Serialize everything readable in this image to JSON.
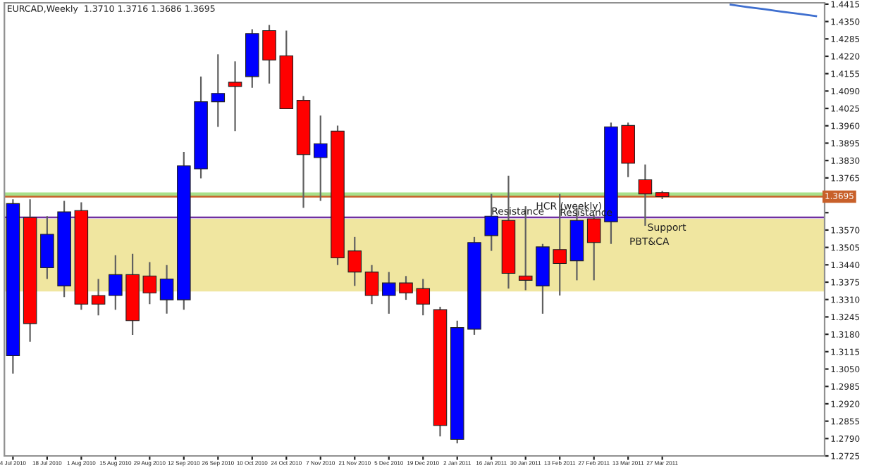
{
  "chart_data": {
    "type": "candlestick",
    "title": "EURCAD,Weekly  1.3710 1.3716 1.3686 1.3695",
    "categories": [
      "4 Jul 2010",
      null,
      "18 Jul 2010",
      null,
      "1 Aug 2010",
      null,
      "15 Aug 2010",
      null,
      "29 Aug 2010",
      null,
      "12 Sep 2010",
      null,
      "26 Sep 2010",
      null,
      "10 Oct 2010",
      null,
      "24 Oct 2010",
      null,
      "7 Nov 2010",
      null,
      "21 Nov 2010",
      null,
      "5 Dec 2010",
      null,
      "19 Dec 2010",
      null,
      "2 Jan 2011",
      null,
      "16 Jan 2011",
      null,
      "30 Jan 2011",
      null,
      "13 Feb 2011",
      null,
      "27 Feb 2011",
      null,
      "13 Mar 2011",
      null,
      "27 Mar 2011",
      null,
      null,
      null,
      null,
      null,
      null,
      null,
      null,
      null
    ],
    "ohlc": [
      [
        1.31,
        1.3685,
        1.3033,
        1.3669
      ],
      [
        1.3617,
        1.3685,
        1.3152,
        1.322
      ],
      [
        1.3429,
        1.3622,
        1.3387,
        1.3554
      ],
      [
        1.3361,
        1.3679,
        1.3319,
        1.3638
      ],
      [
        1.3643,
        1.3674,
        1.3272,
        1.3293
      ],
      [
        1.3325,
        1.3387,
        1.3251,
        1.3293
      ],
      [
        1.3325,
        1.3476,
        1.3272,
        1.3403
      ],
      [
        1.3403,
        1.3481,
        1.3178,
        1.3231
      ],
      [
        1.3398,
        1.345,
        1.3293,
        1.3335
      ],
      [
        1.3309,
        1.3439,
        1.3257,
        1.3387
      ],
      [
        1.3309,
        1.3862,
        1.3272,
        1.381
      ],
      [
        1.3799,
        1.4144,
        1.3763,
        1.405
      ],
      [
        1.405,
        1.4227,
        1.3956,
        1.4081
      ],
      [
        1.4123,
        1.4201,
        1.394,
        1.4107
      ],
      [
        1.4144,
        1.4321,
        1.4102,
        1.4305
      ],
      [
        1.4316,
        1.4337,
        1.4118,
        1.4206
      ],
      [
        1.4222,
        1.4316,
        1.4024,
        1.4024
      ],
      [
        1.4055,
        1.4071,
        1.3653,
        1.3852
      ],
      [
        1.3841,
        1.3998,
        1.3679,
        1.3893
      ],
      [
        1.394,
        1.3961,
        1.3439,
        1.3466
      ],
      [
        1.3492,
        1.3544,
        1.3361,
        1.3413
      ],
      [
        1.3413,
        1.3439,
        1.3293,
        1.3325
      ],
      [
        1.3325,
        1.3413,
        1.3257,
        1.3372
      ],
      [
        1.3372,
        1.3398,
        1.3309,
        1.3335
      ],
      [
        1.3351,
        1.3387,
        1.3251,
        1.3293
      ],
      [
        1.3272,
        1.3283,
        1.2798,
        1.2839
      ],
      [
        1.2787,
        1.3231,
        1.2772,
        1.3205
      ],
      [
        1.3199,
        1.3544,
        1.3178,
        1.3523
      ],
      [
        1.3549,
        1.3705,
        1.3492,
        1.3622
      ],
      [
        1.3606,
        1.3773,
        1.3351,
        1.3408
      ],
      [
        1.3398,
        1.3659,
        1.3345,
        1.3382
      ],
      [
        1.3361,
        1.3518,
        1.3257,
        1.3507
      ],
      [
        1.3497,
        1.3705,
        1.3325,
        1.3445
      ],
      [
        1.3455,
        1.3653,
        1.3382,
        1.3606
      ],
      [
        1.3612,
        1.3627,
        1.3382,
        1.3523
      ],
      [
        1.3601,
        1.3972,
        1.3518,
        1.3956
      ],
      [
        1.3961,
        1.3972,
        1.3768,
        1.382
      ],
      [
        1.3758,
        1.3815,
        1.3586,
        1.3705
      ],
      [
        1.371,
        1.3716,
        1.3686,
        1.3695
      ],
      null,
      null,
      null,
      null,
      null,
      null,
      null,
      null,
      null
    ],
    "colors": [
      "#0000ff",
      "#ff0000",
      "#0000ff",
      "#0000ff",
      "#ff0000",
      "#ff0000",
      "#0000ff",
      "#ff0000",
      "#ff0000",
      "#0000ff",
      "#0000ff",
      "#0000ff",
      "#0000ff",
      "#ff0000",
      "#0000ff",
      "#ff0000",
      "#ff0000",
      "#ff0000",
      "#0000ff",
      "#ff0000",
      "#ff0000",
      "#ff0000",
      "#0000ff",
      "#ff0000",
      "#ff0000",
      "#ff0000",
      "#0000ff",
      "#0000ff",
      "#0000ff",
      "#ff0000",
      "#ff0000",
      "#0000ff",
      "#ff0000",
      "#0000ff",
      "#ff0000",
      "#0000ff",
      "#ff0000",
      "#ff0000",
      "#ff0000",
      null,
      null,
      null,
      null,
      null,
      null,
      null,
      null,
      null
    ],
    "series": [
      {
        "type": "line",
        "color": "#3f6fcf",
        "values": [
          null,
          null,
          null,
          null,
          null,
          null,
          null,
          null,
          null,
          null,
          null,
          null,
          null,
          null,
          null,
          null,
          null,
          null,
          null,
          null,
          null,
          null,
          null,
          null,
          null,
          null,
          null,
          null,
          null,
          null,
          null,
          null,
          null,
          null,
          null,
          null,
          null,
          null,
          null,
          null,
          null,
          null,
          1.4413,
          1.4404,
          1.4396,
          1.4387,
          1.4379,
          1.437
        ]
      }
    ],
    "ylim": [
      1.2725,
      1.442
    ],
    "yticks": [
      {
        "value": 1.2725,
        "label": "1.2725"
      },
      {
        "value": 1.279,
        "label": "1.2790"
      },
      {
        "value": 1.2855,
        "label": "1.2855"
      },
      {
        "value": 1.292,
        "label": "1.2920"
      },
      {
        "value": 1.2985,
        "label": "1.2985"
      },
      {
        "value": 1.305,
        "label": "1.3050"
      },
      {
        "value": 1.3115,
        "label": "1.3115"
      },
      {
        "value": 1.318,
        "label": "1.3180"
      },
      {
        "value": 1.3245,
        "label": "1.3245"
      },
      {
        "value": 1.331,
        "label": "1.3310"
      },
      {
        "value": 1.3375,
        "label": "1.3375"
      },
      {
        "value": 1.344,
        "label": "1.3440"
      },
      {
        "value": 1.3505,
        "label": "1.3505"
      },
      {
        "value": 1.357,
        "label": "1.3570"
      },
      {
        "value": 1.3635,
        "label": null
      },
      {
        "value": 1.37,
        "label": null
      },
      {
        "value": 1.3765,
        "label": "1.3765"
      },
      {
        "value": 1.383,
        "label": "1.3830"
      },
      {
        "value": 1.3895,
        "label": "1.3895"
      },
      {
        "value": 1.396,
        "label": "1.3960"
      },
      {
        "value": 1.4025,
        "label": "1.4025"
      },
      {
        "value": 1.409,
        "label": "1.4090"
      },
      {
        "value": 1.4155,
        "label": "1.4155"
      },
      {
        "value": 1.422,
        "label": "1.4220"
      },
      {
        "value": 1.4285,
        "label": "1.4285"
      },
      {
        "value": 1.435,
        "label": "1.4350"
      },
      {
        "value": 1.4415,
        "label": "1.4415"
      }
    ],
    "bands": [
      {
        "axis": "y",
        "from": 1.334,
        "to": 1.3612,
        "color": "#f0e6a0"
      },
      {
        "axis": "y",
        "from": 1.3695,
        "to": 1.3711,
        "color": "#a8e08a"
      }
    ],
    "ref_lines": [
      {
        "axis": "y",
        "value": 1.3695,
        "label": "1.3695",
        "color": "#c8602a"
      },
      {
        "axis": "y",
        "value": 1.3617,
        "color": "#7030a0"
      }
    ],
    "annotations": [
      {
        "text": "Resistance",
        "x": "16 Jan 2011",
        "y": 1.3638
      },
      "HCR (weekly)",
      {
        "text": "Resistance",
        "x": "13 Feb 2011",
        "y": 1.3633
      },
      "PBT&CA",
      "Support"
    ],
    "grid": false,
    "legend": false
  }
}
